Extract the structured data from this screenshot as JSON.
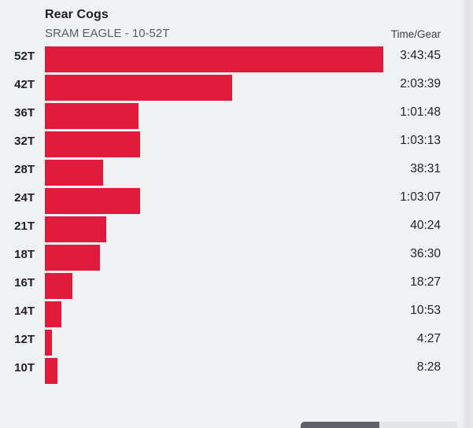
{
  "page": {
    "background_color": "#f0f1f3"
  },
  "chart_data": {
    "type": "bar",
    "orientation": "horizontal",
    "title": "Rear Cogs",
    "subtitle": "SRAM EAGLE - 10-52T",
    "value_column_header": "Time/Gear",
    "categories": [
      "52T",
      "42T",
      "36T",
      "32T",
      "28T",
      "24T",
      "21T",
      "18T",
      "16T",
      "14T",
      "12T",
      "10T"
    ],
    "value_labels": [
      "3:43:45",
      "2:03:39",
      "1:01:48",
      "1:03:13",
      "38:31",
      "1:03:07",
      "40:24",
      "36:30",
      "18:27",
      "10:53",
      "4:27",
      "8:28"
    ],
    "values_seconds": [
      13425,
      7419,
      3708,
      3793,
      2311,
      3787,
      2424,
      2190,
      1107,
      653,
      267,
      508
    ],
    "xlim_seconds": [
      0,
      13425
    ],
    "grid": false,
    "legend": false,
    "bar_color": "#e01b3c"
  },
  "footer": {
    "toggle_active_color": "#5f6368",
    "toggle_inactive_color": "#e3e4e8"
  }
}
